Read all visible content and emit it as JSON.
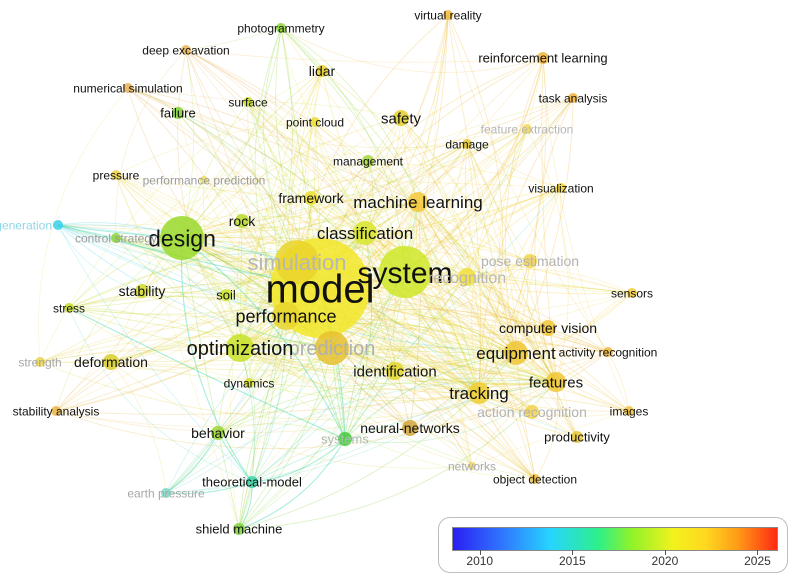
{
  "colors": {
    "y2010": "#2a1ff2",
    "y2015": "#27d4ff",
    "y2020": "#f2f21e",
    "y2025": "#ff2a12"
  },
  "terms": [
    {
      "label": "model",
      "color": "#f2e628",
      "strong": true
    },
    {
      "label": "system",
      "color": "#cfe82a",
      "strong": true
    },
    {
      "label": "simulation",
      "color": "#ead42c",
      "strong": false
    },
    {
      "label": "design",
      "color": "#9ad92a",
      "strong": true
    },
    {
      "label": "prediction",
      "color": "#e6c12f",
      "strong": false
    },
    {
      "label": "optimization",
      "color": "#c8e22a",
      "strong": true
    },
    {
      "label": "performance",
      "color": "#e7d52e",
      "strong": true
    },
    {
      "label": "classification",
      "color": "#d8e62b",
      "strong": true
    },
    {
      "label": "machine learning",
      "color": "#f4c83a",
      "strong": true
    },
    {
      "label": "recognition",
      "color": "#f1de3a",
      "strong": false
    },
    {
      "label": "pose estimation",
      "color": "#f4d24a",
      "strong": false
    },
    {
      "label": "equipment",
      "color": "#eec533",
      "strong": true
    },
    {
      "label": "tracking",
      "color": "#efce31",
      "strong": true
    },
    {
      "label": "features",
      "color": "#f1c733",
      "strong": true
    },
    {
      "label": "computer vision",
      "color": "#f0c534",
      "strong": true
    },
    {
      "label": "identification",
      "color": "#e2d72c",
      "strong": true
    },
    {
      "label": "neural-networks",
      "color": "#d0a43a",
      "strong": true
    },
    {
      "label": "action recognition",
      "color": "#f3d24c",
      "strong": false
    },
    {
      "label": "safety",
      "color": "#e3cf2c",
      "strong": true
    },
    {
      "label": "framework",
      "color": "#eedf2c",
      "strong": true
    },
    {
      "label": "rock",
      "color": "#b8d92b",
      "strong": true
    },
    {
      "label": "stability",
      "color": "#d2d82b",
      "strong": true
    },
    {
      "label": "soil",
      "color": "#cde42b",
      "strong": true
    },
    {
      "label": "deformation",
      "color": "#d9cf2d",
      "strong": true
    },
    {
      "label": "behavior",
      "color": "#9bd62f",
      "strong": true
    },
    {
      "label": "dynamics",
      "color": "#d6df2a",
      "strong": true
    },
    {
      "label": "systems",
      "color": "#42cc3a",
      "strong": false
    },
    {
      "label": "theoretical-model",
      "color": "#3ad3a8",
      "strong": true
    },
    {
      "label": "earth pressure",
      "color": "#7bd8c3",
      "strong": false
    },
    {
      "label": "shield machine",
      "color": "#7fd33a",
      "strong": true
    },
    {
      "label": "stress",
      "color": "#c4d92c",
      "strong": true
    },
    {
      "label": "strength",
      "color": "#e7d44a",
      "strong": false
    },
    {
      "label": "stability analysis",
      "color": "#e9b647",
      "strong": true
    },
    {
      "label": "generation",
      "color": "#36d0e8",
      "strong": false
    },
    {
      "label": "control strategy",
      "color": "#8bd43a",
      "strong": false
    },
    {
      "label": "pressure",
      "color": "#ecd44a",
      "strong": true
    },
    {
      "label": "performance prediction",
      "color": "#e9dd64",
      "strong": false
    },
    {
      "label": "numerical simulation",
      "color": "#e7b158",
      "strong": true
    },
    {
      "label": "failure",
      "color": "#7ccf38",
      "strong": true
    },
    {
      "label": "deep excavation",
      "color": "#e8b45a",
      "strong": true
    },
    {
      "label": "photogrammetry",
      "color": "#8ed635",
      "strong": true
    },
    {
      "label": "surface",
      "color": "#c7dd2c",
      "strong": true
    },
    {
      "label": "lidar",
      "color": "#e7d02c",
      "strong": true
    },
    {
      "label": "point cloud",
      "color": "#eadd39",
      "strong": true
    },
    {
      "label": "management",
      "color": "#a2d83a",
      "strong": true
    },
    {
      "label": "damage",
      "color": "#e2c532",
      "strong": true
    },
    {
      "label": "virtual reality",
      "color": "#f0b83a",
      "strong": true
    },
    {
      "label": "reinforcement learning",
      "color": "#f0b63a",
      "strong": true
    },
    {
      "label": "task analysis",
      "color": "#f1b03a",
      "strong": true
    },
    {
      "label": "feature extraction",
      "color": "#f2d75a",
      "strong": false
    },
    {
      "label": "visualization",
      "color": "#f0d02f",
      "strong": true
    },
    {
      "label": "sensors",
      "color": "#f3cc3a",
      "strong": true
    },
    {
      "label": "activity recognition",
      "color": "#f0b63b",
      "strong": true
    },
    {
      "label": "images",
      "color": "#f0c23a",
      "strong": true
    },
    {
      "label": "productivity",
      "color": "#e9c734",
      "strong": true
    },
    {
      "label": "object detection",
      "color": "#eebd39",
      "strong": true
    },
    {
      "label": "networks",
      "color": "#f0d667",
      "strong": false
    }
  ],
  "legend": {
    "ticks": [
      "2010",
      "2015",
      "2020",
      "2025"
    ],
    "range": [
      2008.5,
      2026
    ]
  }
}
